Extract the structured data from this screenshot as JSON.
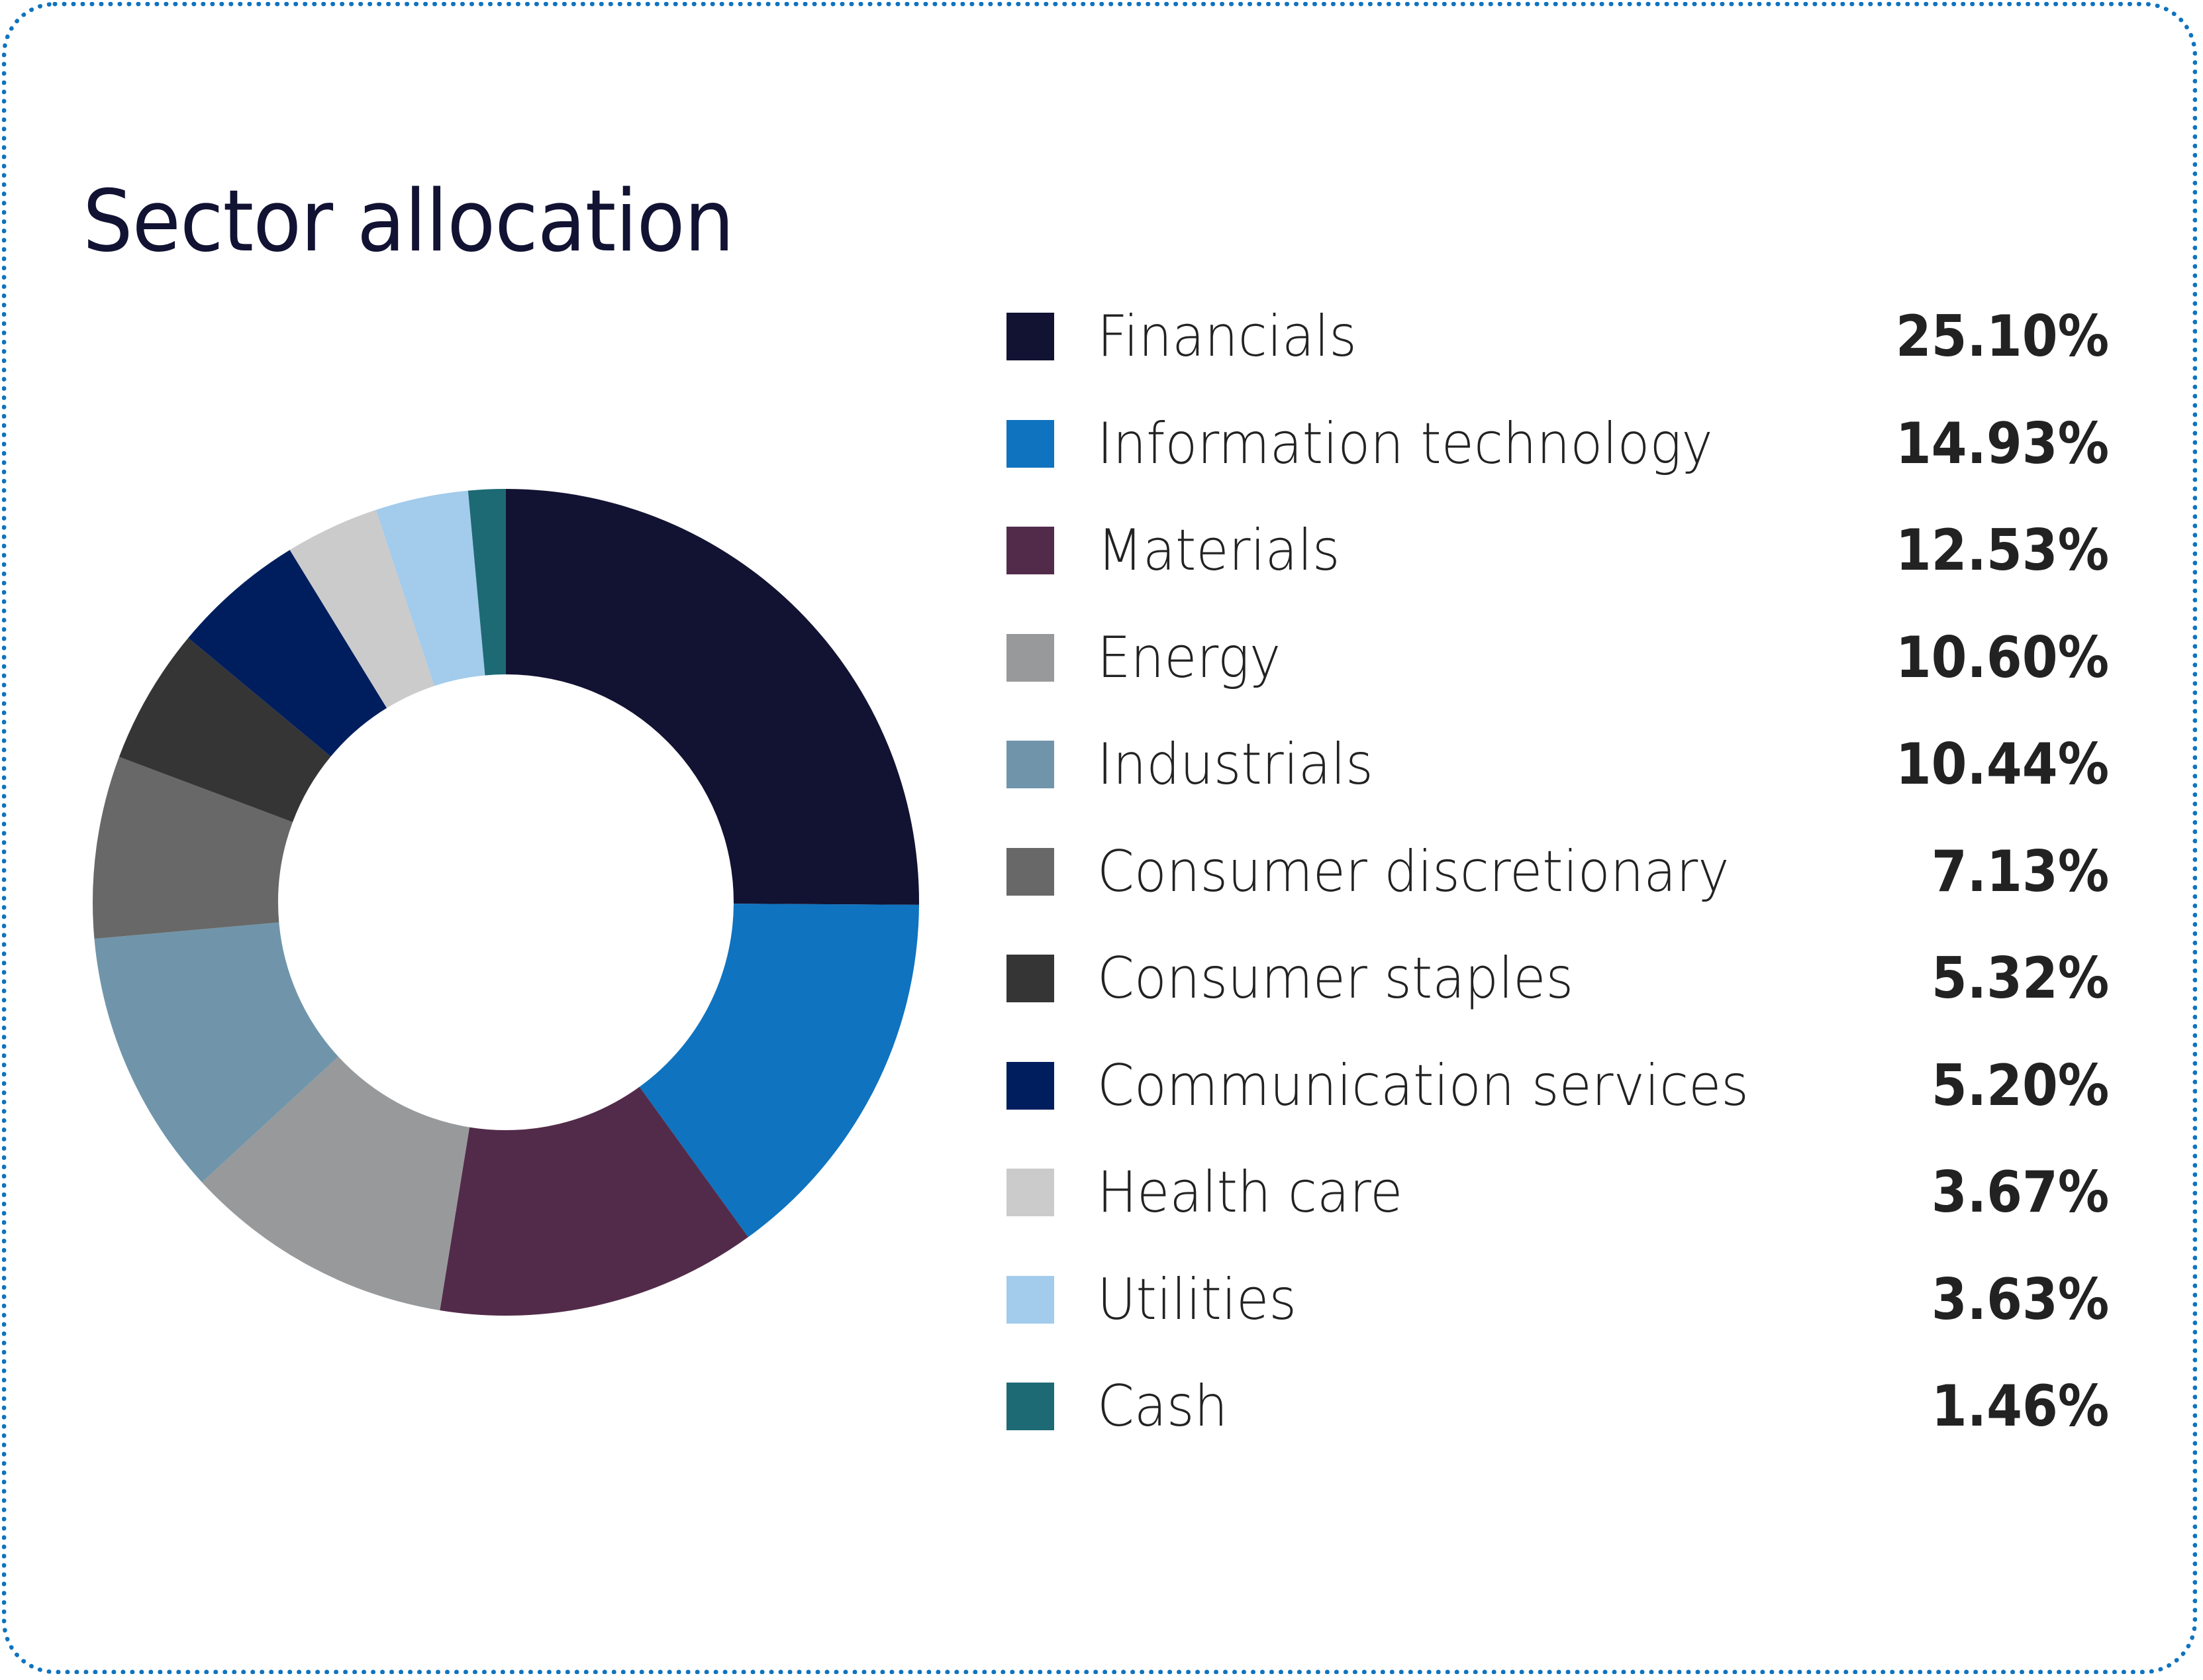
{
  "title": "Sector allocation",
  "border_color": "#0f73bf",
  "chart_data": {
    "type": "pie",
    "variant": "donut",
    "title": "Sector allocation",
    "start": "12 o'clock, clockwise",
    "legend_placement": "right",
    "categories": [
      "Financials",
      "Information technology",
      "Materials",
      "Energy",
      "Industrials",
      "Consumer discretionary",
      "Consumer staples",
      "Communication services",
      "Health care",
      "Utilities",
      "Cash"
    ],
    "values": [
      25.1,
      14.93,
      12.53,
      10.6,
      10.44,
      7.13,
      5.32,
      5.2,
      3.67,
      3.63,
      1.46
    ],
    "labels": [
      "25.10%",
      "14.93%",
      "12.53%",
      "10.60%",
      "10.44%",
      "7.13%",
      "5.32%",
      "5.20%",
      "3.67%",
      "3.63%",
      "1.46%"
    ],
    "colors": [
      "#121233",
      "#0f73bf",
      "#522b4a",
      "#98999b",
      "#7095ab",
      "#686868",
      "#353535",
      "#001e5e",
      "#cbcbcb",
      "#a2cbec",
      "#1d6a75"
    ],
    "unit": "%"
  }
}
